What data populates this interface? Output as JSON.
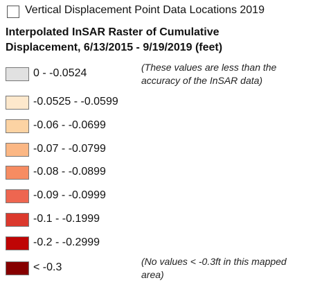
{
  "checkbox": {
    "label": "Vertical Displacement Point Data Locations 2019"
  },
  "title": [
    "Interpolated InSAR Raster of Cumulative",
    "Displacement, 6/13/2015 - 9/19/2019 (feet)"
  ],
  "items": [
    {
      "label": "0 - -0.0524",
      "color": "#e1e1e1",
      "note": [
        "(These values are less than the",
        "accuracy of the InSAR data)"
      ]
    },
    {
      "label": "-0.0525 - -0.0599",
      "color": "#fde8cc"
    },
    {
      "label": "-0.06 - -0.0699",
      "color": "#fcd3a3"
    },
    {
      "label": "-0.07 - -0.0799",
      "color": "#fbb784"
    },
    {
      "label": "-0.08 - -0.0899",
      "color": "#f68c62"
    },
    {
      "label": "-0.09 - -0.0999",
      "color": "#ee6650"
    },
    {
      "label": "-0.1 - -0.1999",
      "color": "#db392d"
    },
    {
      "label": "-0.2 - -0.2999",
      "color": "#bf0505"
    },
    {
      "label": "< -0.3",
      "color": "#860000",
      "note": [
        "(No values < -0.3ft in this mapped",
        "area)"
      ]
    }
  ]
}
